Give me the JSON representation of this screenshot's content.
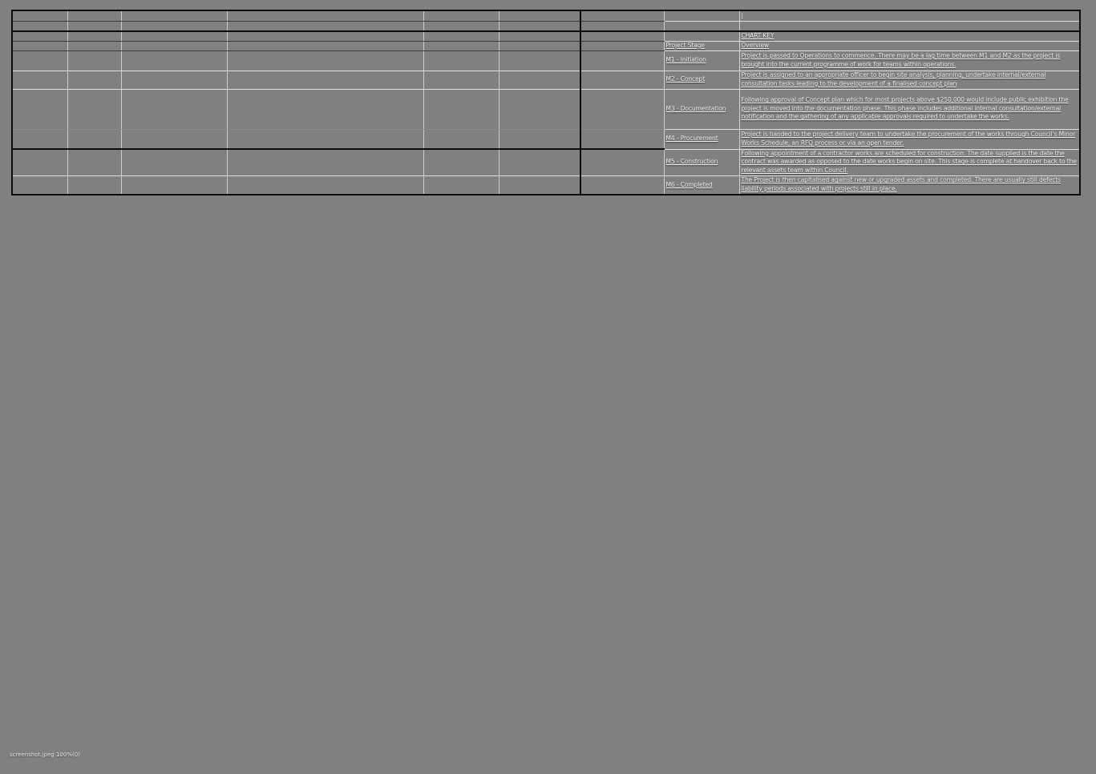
{
  "colors": {
    "background": "#808080",
    "grid_light": "#cfcfcf",
    "grid_black": "#0d0d0d",
    "text": "#f2f2f2"
  },
  "watermark": {
    "text": "screenshot.jpeg 100%(0)"
  },
  "chart_key": {
    "title": "CHART KEY",
    "stage_column_header": "Project Stage",
    "description_column_header": "Overview",
    "rows": [
      {
        "stage": "",
        "description": "|"
      },
      {
        "stage": "",
        "description": ""
      },
      {
        "stage": "",
        "description": "CHART KEY"
      },
      {
        "stage": "Project Stage",
        "description": "Overview"
      },
      {
        "stage": "M1 - Initiation",
        "description": "Project is passed to Operations to commence. There may be a lag time between M1 and M2 as the project is brought into the current programme of work for teams within operations."
      },
      {
        "stage": "M2 - Concept",
        "description": "Project is assigned to an appropriate officer to begin site analysis, planning, undertake internal/external consultation tasks leading to the development of a finalised concept plan"
      },
      {
        "stage": "M3 - Documentation",
        "description": "Following approval of Concept plan which for most projects above $250,000 would include public exhibition the project is moved into the documentation phase. This phase includes additional internal consultation/external notification and the gathering of any applicable approvals required to undertake the works."
      },
      {
        "stage": "M4 - Procurement",
        "description": "Project is handed to the project delivery team to undertake the procurement of the works through Council's Minor Works Schedule, an RFQ process or via an open tender."
      },
      {
        "stage": "M5 - Construction",
        "description": "Following appointment of a contractor works are scheduled for construction. The date supplied is the date the contract was awarded as opposed to the date works begin on site. This stage is complete at handover back to the relevant assets team within Council."
      },
      {
        "stage": "M6 - Completed",
        "description": "The Project is then capitalised against new or upgraded assets and completed. There are usually still defects liability periods associated with projects still in place."
      }
    ]
  }
}
